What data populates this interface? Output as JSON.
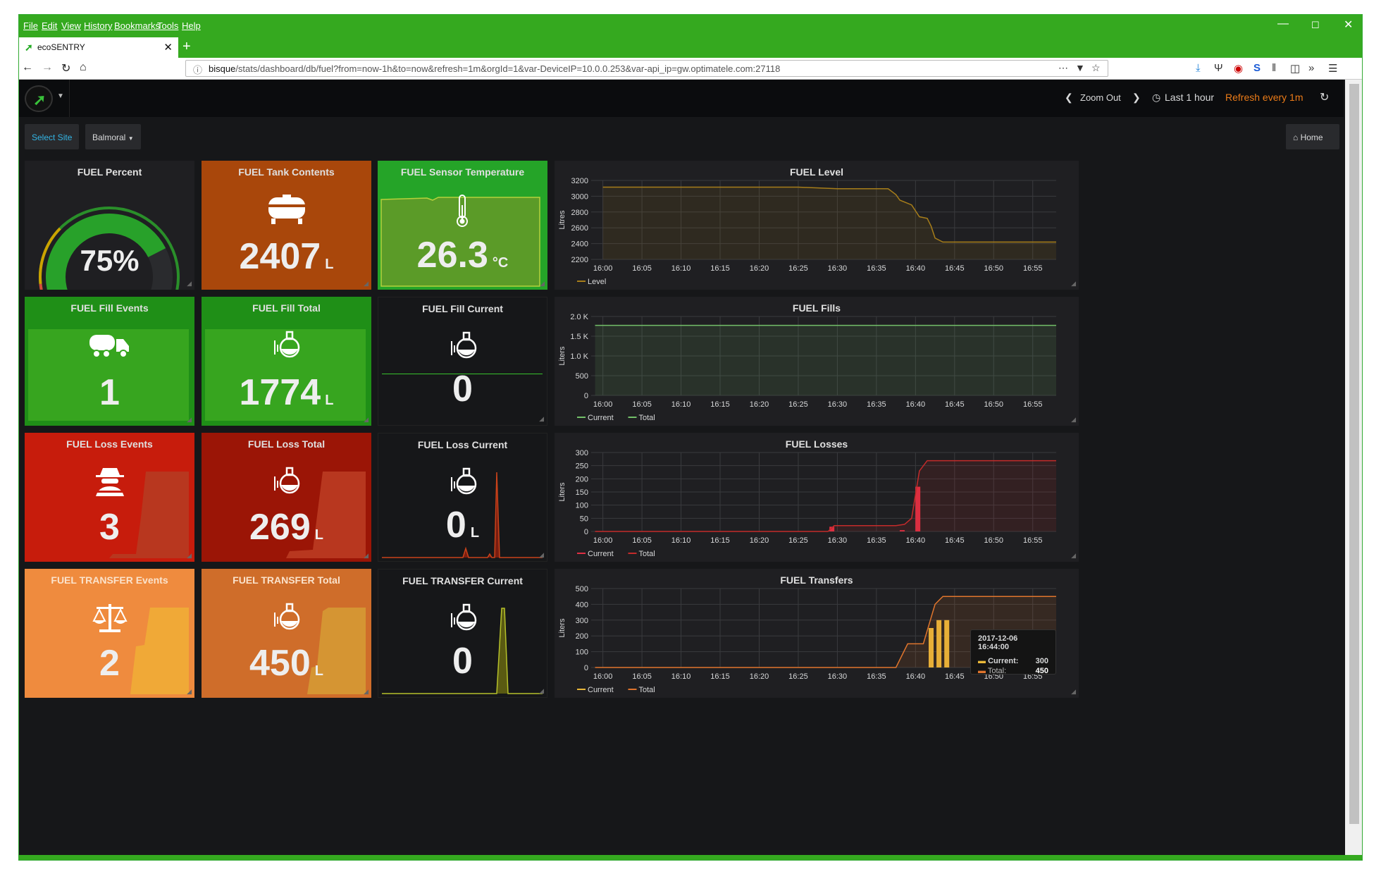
{
  "browser": {
    "menu": [
      "File",
      "Edit",
      "View",
      "History",
      "Bookmarks",
      "Tools",
      "Help"
    ],
    "tab_title": "ecoSENTRY",
    "url_host": "bisque",
    "url_path": "/stats/dashboard/db/fuel?from=now-1h&to=now&refresh=1m&orgId=1&var-DeviceIP=10.0.0.253&var-api_ip=gw.optimatele.com:27118"
  },
  "header": {
    "zoom_out": "Zoom Out",
    "time_range": "Last 1 hour",
    "refresh": "Refresh every 1m",
    "home": "Home"
  },
  "variables": {
    "select_site": "Select Site",
    "site_value": "Balmoral"
  },
  "colors": {
    "fill_green": "#34a91c",
    "dark_panel": "#1f1f22",
    "orange_tank": "#a9470b",
    "temp_green": "#5b9b28",
    "loss_red": "#c71c0c",
    "loss_red_dark": "#9b1506",
    "transfer_orange": "#ef8b3e",
    "transfer_orange_dark": "#cf6d2a",
    "level_line": "#a67d1a",
    "fill_line": "#73bf69",
    "loss_line": "#e02f44",
    "transfer_line": "#eab839"
  },
  "panels": {
    "fuel_percent": {
      "title": "FUEL Percent",
      "value": "75%",
      "percent": 75
    },
    "tank_contents": {
      "title": "FUEL Tank Contents",
      "value": "2407",
      "unit": "L",
      "icon": "tank-icon"
    },
    "sensor_temp": {
      "title": "FUEL Sensor Temperature",
      "value": "26.3",
      "unit": "°C",
      "icon": "thermometer-icon"
    },
    "fill_events": {
      "title": "FUEL Fill Events",
      "value": "1",
      "icon": "truck-icon"
    },
    "fill_total": {
      "title": "FUEL Fill Total",
      "value": "1774",
      "unit": "L",
      "icon": "flask-icon"
    },
    "fill_current": {
      "title": "FUEL Fill Current",
      "value": "0",
      "icon": "flask-icon"
    },
    "loss_events": {
      "title": "FUEL Loss Events",
      "value": "3",
      "icon": "thief-icon"
    },
    "loss_total": {
      "title": "FUEL Loss Total",
      "value": "269",
      "unit": "L",
      "icon": "flask-icon"
    },
    "loss_current": {
      "title": "FUEL Loss Current",
      "value": "0",
      "unit": "L",
      "icon": "flask-icon"
    },
    "transfer_events": {
      "title": "FUEL TRANSFER Events",
      "value": "2",
      "icon": "scale-icon"
    },
    "transfer_total": {
      "title": "FUEL TRANSFER Total",
      "value": "450",
      "unit": "L",
      "icon": "flask-icon"
    },
    "transfer_current": {
      "title": "FUEL TRANSFER Current",
      "value": "0",
      "icon": "flask-icon"
    }
  },
  "tooltip": {
    "time": "2017-12-06 16:44:00",
    "current_label": "Current:",
    "current_value": "300",
    "total_label": "Total:",
    "total_value": "450"
  },
  "chart_data": [
    {
      "type": "line",
      "title": "FUEL Level",
      "ylabel": "Litres",
      "ylim": [
        2200,
        3200
      ],
      "yticks": [
        "3200",
        "3000",
        "2800",
        "2600",
        "2400",
        "2200"
      ],
      "x": [
        "16:00",
        "16:05",
        "16:10",
        "16:15",
        "16:20",
        "16:25",
        "16:30",
        "16:35",
        "16:40",
        "16:45",
        "16:50",
        "16:55"
      ],
      "series": [
        {
          "name": "Level",
          "color": "#a67d1a",
          "points": [
            [
              0,
              3115
            ],
            [
              5,
              3115
            ],
            [
              10,
              3115
            ],
            [
              15,
              3115
            ],
            [
              20,
              3115
            ],
            [
              25,
              3115
            ],
            [
              30,
              3095
            ],
            [
              36.5,
              3095
            ],
            [
              37.5,
              3020
            ],
            [
              38,
              2950
            ],
            [
              39.5,
              2890
            ],
            [
              40.5,
              2740
            ],
            [
              41.5,
              2720
            ],
            [
              42,
              2620
            ],
            [
              42.5,
              2470
            ],
            [
              43.5,
              2420
            ],
            [
              50,
              2420
            ],
            [
              58,
              2420
            ]
          ]
        }
      ],
      "legend": "bottom-left"
    },
    {
      "type": "line",
      "title": "FUEL Fills",
      "ylabel": "Liters",
      "ylim": [
        0,
        2000
      ],
      "yticks": [
        "2.0 K",
        "1.5 K",
        "1.0 K",
        "500",
        "0"
      ],
      "x": [
        "16:00",
        "16:05",
        "16:10",
        "16:15",
        "16:20",
        "16:25",
        "16:30",
        "16:35",
        "16:40",
        "16:45",
        "16:50",
        "16:55"
      ],
      "series": [
        {
          "name": "Current",
          "color": "#73bf69",
          "points": []
        },
        {
          "name": "Total",
          "color": "#73bf69",
          "points": [
            [
              -1,
              1774
            ],
            [
              58,
              1774
            ]
          ]
        }
      ],
      "legend": "bottom-left"
    },
    {
      "type": "bar+line",
      "title": "FUEL Losses",
      "ylabel": "Liters",
      "ylim": [
        0,
        300
      ],
      "yticks": [
        "300",
        "250",
        "200",
        "150",
        "100",
        "50",
        "0"
      ],
      "x": [
        "16:00",
        "16:05",
        "16:10",
        "16:15",
        "16:20",
        "16:25",
        "16:30",
        "16:35",
        "16:40",
        "16:45",
        "16:50",
        "16:55"
      ],
      "series": [
        {
          "name": "Current",
          "color": "#e02f44",
          "bars": [
            [
              29.3,
              18
            ],
            [
              38.3,
              5
            ],
            [
              40.3,
              170
            ]
          ]
        },
        {
          "name": "Total",
          "color": "#c42b2b",
          "points": [
            [
              -1,
              0
            ],
            [
              28.8,
              0
            ],
            [
              29.6,
              22
            ],
            [
              37.5,
              22
            ],
            [
              38.6,
              27
            ],
            [
              39.5,
              50
            ],
            [
              40.5,
              230
            ],
            [
              41.5,
              269
            ],
            [
              58,
              269
            ]
          ]
        }
      ],
      "legend": "bottom-left"
    },
    {
      "type": "bar+line",
      "title": "FUEL Transfers",
      "ylabel": "Liters",
      "ylim": [
        0,
        500
      ],
      "yticks": [
        "500",
        "400",
        "300",
        "200",
        "100",
        "0"
      ],
      "x": [
        "16:00",
        "16:05",
        "16:10",
        "16:15",
        "16:20",
        "16:25",
        "16:30",
        "16:35",
        "16:40",
        "16:45",
        "16:50",
        "16:55"
      ],
      "series": [
        {
          "name": "Current",
          "color": "#eab839",
          "bars": [
            [
              42,
              250
            ],
            [
              43,
              300
            ],
            [
              44,
              300
            ]
          ]
        },
        {
          "name": "Total",
          "color": "#e0752d",
          "points": [
            [
              -1,
              0
            ],
            [
              37.5,
              0
            ],
            [
              39,
              150
            ],
            [
              41,
              150
            ],
            [
              42.5,
              400
            ],
            [
              43.5,
              450
            ],
            [
              58,
              450
            ]
          ]
        }
      ],
      "legend": "bottom-left"
    }
  ]
}
